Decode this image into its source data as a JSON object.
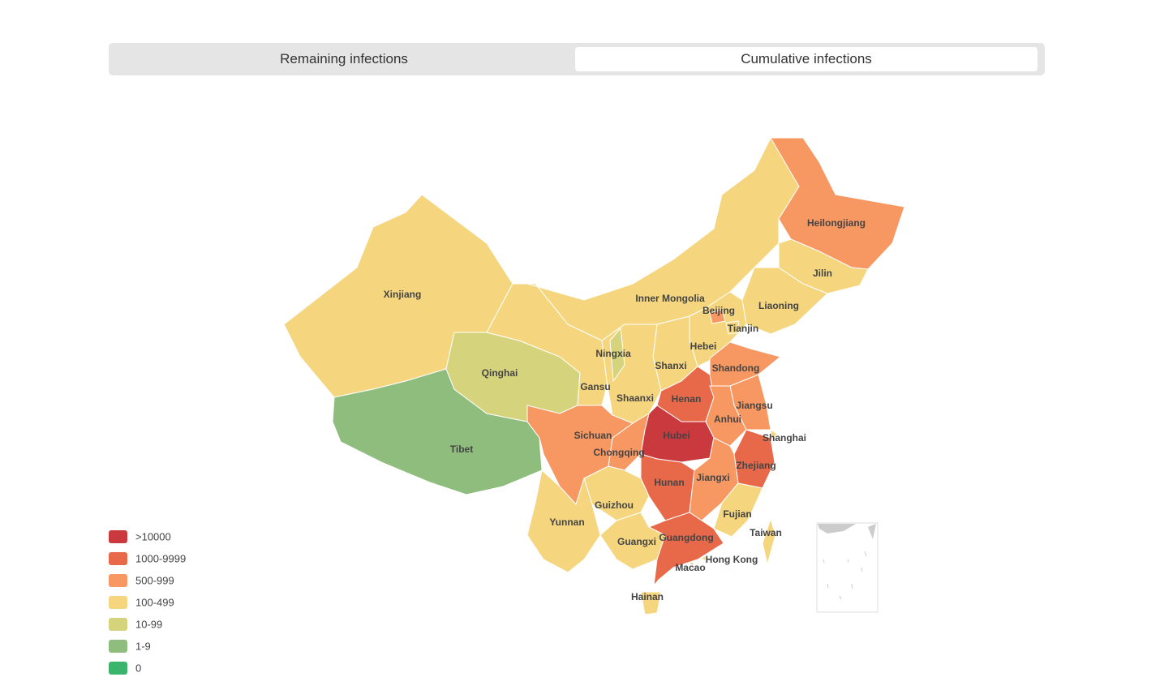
{
  "tabs": [
    "Remaining infections",
    "Cumulative infections"
  ],
  "legend": [
    {
      "label": ">10000",
      "color": "#c9393e"
    },
    {
      "label": "1000-9999",
      "color": "#e8694a"
    },
    {
      "label": "500-999",
      "color": "#f79862"
    },
    {
      "label": "100-499",
      "color": "#f5d67f"
    },
    {
      "label": "10-99",
      "color": "#d5d37c"
    },
    {
      "label": "1-9",
      "color": "#8fbd7d"
    },
    {
      "label": "0",
      "color": "#3ab56b"
    }
  ],
  "regions": [
    {
      "name": "Xinjiang",
      "color": "#f5d67f"
    },
    {
      "name": "Tibet",
      "color": "#8fbd7d"
    },
    {
      "name": "Qinghai",
      "color": "#d5d37c"
    },
    {
      "name": "Gansu",
      "color": "#f5d67f"
    },
    {
      "name": "Inner Mongolia",
      "color": "#f5d67f"
    },
    {
      "name": "Heilongjiang",
      "color": "#f79862"
    },
    {
      "name": "Jilin",
      "color": "#f5d67f"
    },
    {
      "name": "Liaoning",
      "color": "#f5d67f"
    },
    {
      "name": "Hebei",
      "color": "#f5d67f"
    },
    {
      "name": "Beijing",
      "color": "#f79862"
    },
    {
      "name": "Tianjin",
      "color": "#f5d67f"
    },
    {
      "name": "Shanxi",
      "color": "#f5d67f"
    },
    {
      "name": "Shaanxi",
      "color": "#f5d67f"
    },
    {
      "name": "Ningxia",
      "color": "#d5d37c"
    },
    {
      "name": "Shandong",
      "color": "#f79862"
    },
    {
      "name": "Henan",
      "color": "#e8694a"
    },
    {
      "name": "Jiangsu",
      "color": "#f79862"
    },
    {
      "name": "Anhui",
      "color": "#f79862"
    },
    {
      "name": "Shanghai",
      "color": "#f5d67f"
    },
    {
      "name": "Zhejiang",
      "color": "#e8694a"
    },
    {
      "name": "Hubei",
      "color": "#c9393e"
    },
    {
      "name": "Chongqing",
      "color": "#f79862"
    },
    {
      "name": "Sichuan",
      "color": "#f79862"
    },
    {
      "name": "Hunan",
      "color": "#e8694a"
    },
    {
      "name": "Jiangxi",
      "color": "#f79862"
    },
    {
      "name": "Fujian",
      "color": "#f5d67f"
    },
    {
      "name": "Guizhou",
      "color": "#f5d67f"
    },
    {
      "name": "Yunnan",
      "color": "#f5d67f"
    },
    {
      "name": "Guangxi",
      "color": "#f5d67f"
    },
    {
      "name": "Guangdong",
      "color": "#e8694a"
    },
    {
      "name": "Hong Kong",
      "color": "#f5d67f"
    },
    {
      "name": "Macao",
      "color": "#f5d67f"
    },
    {
      "name": "Hainan",
      "color": "#f5d67f"
    },
    {
      "name": "Taiwan",
      "color": "#f5d67f"
    }
  ]
}
